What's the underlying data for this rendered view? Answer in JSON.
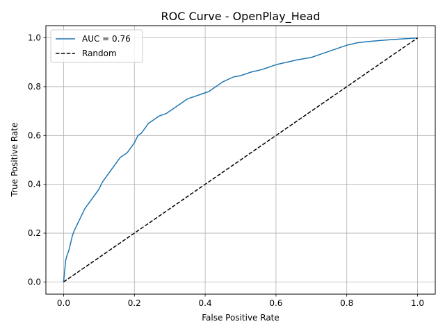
{
  "chart_data": {
    "type": "line",
    "title": "ROC Curve - OpenPlay_Head",
    "xlabel": "False Positive Rate",
    "ylabel": "True Positive Rate",
    "xlim": [
      -0.05,
      1.05
    ],
    "ylim": [
      -0.05,
      1.05
    ],
    "xticks": [
      "0.0",
      "0.2",
      "0.4",
      "0.6",
      "0.8",
      "1.0"
    ],
    "yticks": [
      "0.0",
      "0.2",
      "0.4",
      "0.6",
      "0.8",
      "1.0"
    ],
    "grid": true,
    "legend_position": "top-left",
    "series": [
      {
        "name": "AUC = 0.76",
        "color": "#1f77b4",
        "style": "solid",
        "x": [
          0.0,
          0.002,
          0.004,
          0.006,
          0.01,
          0.015,
          0.02,
          0.025,
          0.03,
          0.04,
          0.05,
          0.06,
          0.07,
          0.08,
          0.09,
          0.1,
          0.11,
          0.12,
          0.13,
          0.14,
          0.15,
          0.16,
          0.17,
          0.18,
          0.19,
          0.2,
          0.21,
          0.22,
          0.23,
          0.24,
          0.25,
          0.27,
          0.29,
          0.31,
          0.33,
          0.35,
          0.37,
          0.39,
          0.41,
          0.43,
          0.45,
          0.48,
          0.5,
          0.53,
          0.56,
          0.6,
          0.63,
          0.66,
          0.7,
          0.73,
          0.76,
          0.8,
          0.83,
          0.86,
          0.9,
          0.93,
          0.96,
          1.0
        ],
        "y": [
          0.0,
          0.03,
          0.06,
          0.09,
          0.11,
          0.13,
          0.16,
          0.19,
          0.21,
          0.24,
          0.27,
          0.3,
          0.32,
          0.34,
          0.36,
          0.38,
          0.41,
          0.43,
          0.45,
          0.47,
          0.49,
          0.51,
          0.52,
          0.53,
          0.55,
          0.57,
          0.6,
          0.61,
          0.63,
          0.65,
          0.66,
          0.68,
          0.69,
          0.71,
          0.73,
          0.75,
          0.76,
          0.77,
          0.78,
          0.8,
          0.82,
          0.84,
          0.845,
          0.86,
          0.87,
          0.89,
          0.9,
          0.91,
          0.92,
          0.935,
          0.95,
          0.97,
          0.98,
          0.985,
          0.99,
          0.993,
          0.996,
          1.0
        ]
      },
      {
        "name": "Random",
        "color": "#000000",
        "style": "dashed",
        "x": [
          0.0,
          1.0
        ],
        "y": [
          0.0,
          1.0
        ]
      }
    ]
  }
}
